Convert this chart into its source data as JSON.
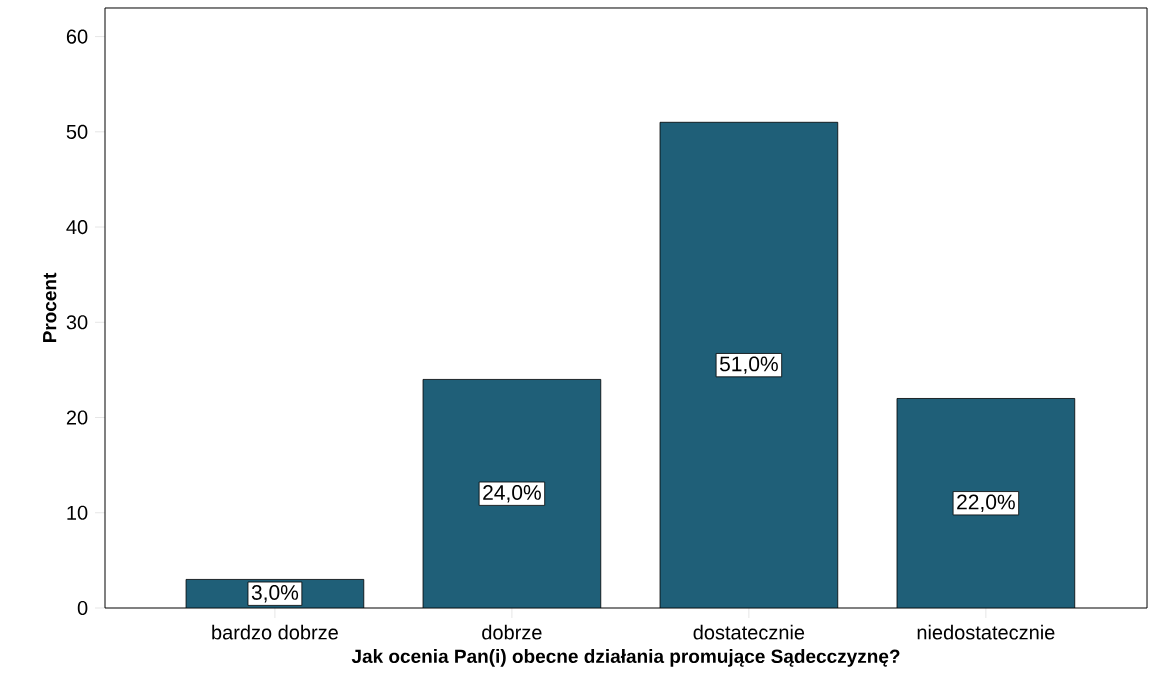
{
  "chart_data": {
    "type": "bar",
    "xlabel": "Jak ocenia Pan(i) obecne działania promujące Sądecczyznę?",
    "ylabel": "Procent",
    "categories": [
      "bardzo dobrze",
      "dobrze",
      "dostatecznie",
      "niedostatecznie"
    ],
    "values": [
      3.0,
      24.0,
      51.0,
      22.0
    ],
    "value_labels": [
      "3,0%",
      "24,0%",
      "51,0%",
      "22,0%"
    ],
    "color": "#1f5f78",
    "ylim": [
      0,
      63
    ],
    "yticks": [
      0,
      10,
      20,
      30,
      40,
      50,
      60
    ]
  }
}
